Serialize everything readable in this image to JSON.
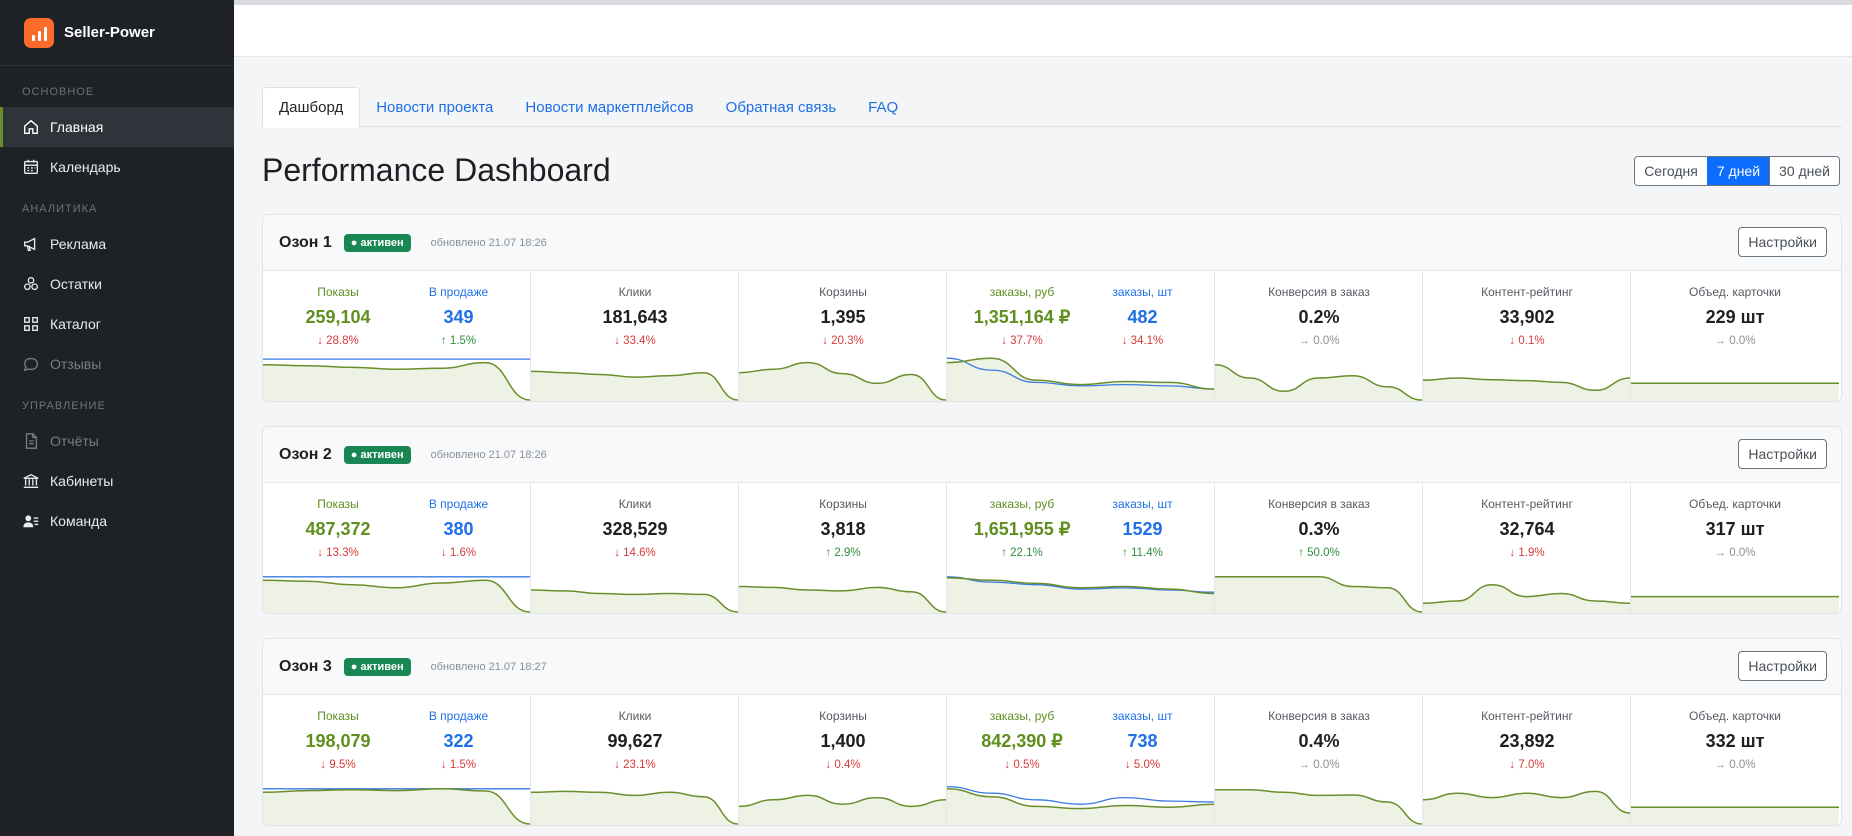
{
  "app": {
    "brand": "Seller-Power"
  },
  "sidebar": {
    "sections": [
      {
        "title": "ОСНОВНОЕ",
        "items": [
          {
            "label": "Главная",
            "icon": "home-icon",
            "active": true,
            "disabled": false
          },
          {
            "label": "Календарь",
            "icon": "calendar-icon",
            "active": false,
            "disabled": false
          }
        ]
      },
      {
        "title": "АНАЛИТИКА",
        "items": [
          {
            "label": "Реклама",
            "icon": "megaphone-icon",
            "active": false,
            "disabled": false
          },
          {
            "label": "Остатки",
            "icon": "boxes-icon",
            "active": false,
            "disabled": false
          },
          {
            "label": "Каталог",
            "icon": "grid-icon",
            "active": false,
            "disabled": false
          },
          {
            "label": "Отзывы",
            "icon": "chat-icon",
            "active": false,
            "disabled": true
          }
        ]
      },
      {
        "title": "УПРАВЛЕНИЕ",
        "items": [
          {
            "label": "Отчёты",
            "icon": "document-icon",
            "active": false,
            "disabled": true
          },
          {
            "label": "Кабинеты",
            "icon": "bank-icon",
            "active": false,
            "disabled": false
          },
          {
            "label": "Команда",
            "icon": "team-icon",
            "active": false,
            "disabled": false
          }
        ]
      }
    ]
  },
  "tabs": [
    {
      "label": "Дашборд",
      "active": true
    },
    {
      "label": "Новости проекта",
      "active": false
    },
    {
      "label": "Новости маркетплейсов",
      "active": false
    },
    {
      "label": "Обратная связь",
      "active": false
    },
    {
      "label": "FAQ",
      "active": false
    }
  ],
  "page_title": "Performance Dashboard",
  "period": [
    {
      "label": "Сегодня",
      "active": false
    },
    {
      "label": "7 дней",
      "active": true
    },
    {
      "label": "30 дней",
      "active": false
    }
  ],
  "settings_label": "Настройки",
  "colors": {
    "green": "#6a8e2d",
    "blue": "#3a7be0",
    "fill": "#eef2e4"
  },
  "cards": [
    {
      "name": "Озон 1",
      "status": "● активен",
      "updated": "обновлено 21.07 18:26",
      "cells": [
        {
          "type": "dual",
          "left": {
            "label": "Показы",
            "value": "259,104",
            "delta": "↓ 28.8%",
            "trend": "down"
          },
          "right": {
            "label": "В продаже",
            "value": "349",
            "delta": "↑ 1.5%",
            "trend": "up"
          },
          "series_green": [
            0.8,
            0.78,
            0.74,
            0.7,
            0.72,
            0.85,
            0.0
          ],
          "series_blue": [
            0.93,
            0.93,
            0.93,
            0.93,
            0.93,
            0.93,
            0.93
          ]
        },
        {
          "type": "single",
          "metric": {
            "label": "Клики",
            "value": "181,643",
            "delta": "↓ 33.4%",
            "trend": "down"
          },
          "series_green": [
            0.65,
            0.62,
            0.58,
            0.52,
            0.55,
            0.62,
            0.0
          ]
        },
        {
          "type": "single",
          "metric": {
            "label": "Корзины",
            "value": "1,395",
            "delta": "↓ 20.3%",
            "trend": "down"
          },
          "series_green": [
            0.62,
            0.7,
            0.85,
            0.6,
            0.38,
            0.58,
            0.0
          ]
        },
        {
          "type": "dual",
          "left": {
            "label": "заказы, руб",
            "value": "1,351,164 ₽",
            "delta": "↓ 37.7%",
            "trend": "down"
          },
          "right": {
            "label": "заказы, шт",
            "value": "482",
            "delta": "↓ 34.1%",
            "trend": "down"
          },
          "series_green": [
            0.85,
            0.95,
            0.45,
            0.35,
            0.42,
            0.4,
            0.25
          ],
          "series_blue": [
            0.95,
            0.68,
            0.4,
            0.32,
            0.35,
            0.32,
            0.25
          ]
        },
        {
          "type": "single",
          "metric": {
            "label": "Конверсия в заказ",
            "value": "0.2%",
            "delta": "→ 0.0%",
            "trend": "flat"
          },
          "series_green": [
            0.8,
            0.5,
            0.2,
            0.5,
            0.55,
            0.3,
            0.0
          ]
        },
        {
          "type": "single",
          "metric": {
            "label": "Контент-рейтинг",
            "value": "33,902",
            "delta": "↓ 0.1%",
            "trend": "down"
          },
          "series_green": [
            0.45,
            0.5,
            0.46,
            0.44,
            0.4,
            0.22,
            0.5
          ]
        },
        {
          "type": "single",
          "metric": {
            "label": "Объед. карточки",
            "value": "229 шт",
            "delta": "→ 0.0%",
            "trend": "flat"
          },
          "series_green": [
            0.38,
            0.38,
            0.38,
            0.38,
            0.38,
            0.38,
            0.38
          ]
        }
      ]
    },
    {
      "name": "Озон 2",
      "status": "● активен",
      "updated": "обновлено 21.07 18:26",
      "cells": [
        {
          "type": "dual",
          "left": {
            "label": "Показы",
            "value": "487,372",
            "delta": "↓ 13.3%",
            "trend": "down"
          },
          "right": {
            "label": "В продаже",
            "value": "380",
            "delta": "↓ 1.6%",
            "trend": "down"
          },
          "series_green": [
            0.72,
            0.7,
            0.62,
            0.55,
            0.66,
            0.72,
            0.0
          ],
          "series_blue": [
            0.8,
            0.8,
            0.8,
            0.8,
            0.8,
            0.8,
            0.8
          ]
        },
        {
          "type": "single",
          "metric": {
            "label": "Клики",
            "value": "328,529",
            "delta": "↓ 14.6%",
            "trend": "down"
          },
          "series_green": [
            0.5,
            0.48,
            0.42,
            0.4,
            0.42,
            0.4,
            0.0
          ]
        },
        {
          "type": "single",
          "metric": {
            "label": "Корзины",
            "value": "3,818",
            "delta": "↑ 2.9%",
            "trend": "up"
          },
          "series_green": [
            0.58,
            0.56,
            0.5,
            0.48,
            0.56,
            0.46,
            0.0
          ]
        },
        {
          "type": "dual",
          "left": {
            "label": "заказы, руб",
            "value": "1,651,955 ₽",
            "delta": "↑ 22.1%",
            "trend": "up"
          },
          "right": {
            "label": "заказы, шт",
            "value": "1529",
            "delta": "↑ 11.4%",
            "trend": "up"
          },
          "series_green": [
            0.78,
            0.72,
            0.65,
            0.55,
            0.58,
            0.52,
            0.42
          ],
          "series_blue": [
            0.8,
            0.68,
            0.62,
            0.52,
            0.55,
            0.5,
            0.45
          ]
        },
        {
          "type": "single",
          "metric": {
            "label": "Конверсия в заказ",
            "value": "0.3%",
            "delta": "↑ 50.0%",
            "trend": "up"
          },
          "series_green": [
            0.8,
            0.8,
            0.8,
            0.8,
            0.58,
            0.55,
            0.0
          ]
        },
        {
          "type": "single",
          "metric": {
            "label": "Контент-рейтинг",
            "value": "32,764",
            "delta": "↓ 1.9%",
            "trend": "down"
          },
          "series_green": [
            0.2,
            0.25,
            0.62,
            0.35,
            0.42,
            0.25,
            0.2
          ]
        },
        {
          "type": "single",
          "metric": {
            "label": "Объед. карточки",
            "value": "317 шт",
            "delta": "→ 0.0%",
            "trend": "flat"
          },
          "series_green": [
            0.35,
            0.35,
            0.35,
            0.35,
            0.35,
            0.35,
            0.35
          ]
        }
      ]
    },
    {
      "name": "Озон 3",
      "status": "● активен",
      "updated": "обновлено 21.07 18:27",
      "cells": [
        {
          "type": "dual",
          "left": {
            "label": "Показы",
            "value": "198,079",
            "delta": "↓ 9.5%",
            "trend": "down"
          },
          "right": {
            "label": "В продаже",
            "value": "322",
            "delta": "↓ 1.5%",
            "trend": "down"
          },
          "series_green": [
            0.72,
            0.76,
            0.78,
            0.76,
            0.8,
            0.75,
            0.0
          ],
          "series_blue": [
            0.8,
            0.8,
            0.8,
            0.8,
            0.8,
            0.8,
            0.8
          ]
        },
        {
          "type": "single",
          "metric": {
            "label": "Клики",
            "value": "99,627",
            "delta": "↓ 23.1%",
            "trend": "down"
          },
          "series_green": [
            0.72,
            0.74,
            0.72,
            0.65,
            0.72,
            0.62,
            0.0
          ]
        },
        {
          "type": "single",
          "metric": {
            "label": "Корзины",
            "value": "1,400",
            "delta": "↓ 0.4%",
            "trend": "down"
          },
          "series_green": [
            0.4,
            0.55,
            0.65,
            0.45,
            0.6,
            0.4,
            0.55
          ]
        },
        {
          "type": "dual",
          "left": {
            "label": "заказы, руб",
            "value": "842,390 ₽",
            "delta": "↓ 0.5%",
            "trend": "down"
          },
          "right": {
            "label": "заказы, шт",
            "value": "738",
            "delta": "↓ 5.0%",
            "trend": "down"
          },
          "series_green": [
            0.8,
            0.62,
            0.4,
            0.35,
            0.42,
            0.38,
            0.45
          ],
          "series_blue": [
            0.85,
            0.7,
            0.55,
            0.45,
            0.6,
            0.52,
            0.5
          ]
        },
        {
          "type": "single",
          "metric": {
            "label": "Конверсия в заказ",
            "value": "0.4%",
            "delta": "→ 0.0%",
            "trend": "flat"
          },
          "series_green": [
            0.78,
            0.78,
            0.72,
            0.65,
            0.66,
            0.5,
            0.0
          ]
        },
        {
          "type": "single",
          "metric": {
            "label": "Контент-рейтинг",
            "value": "23,892",
            "delta": "↓ 7.0%",
            "trend": "down"
          },
          "series_green": [
            0.55,
            0.7,
            0.6,
            0.7,
            0.6,
            0.74,
            0.25
          ]
        },
        {
          "type": "single",
          "metric": {
            "label": "Объед. карточки",
            "value": "332 шт",
            "delta": "→ 0.0%",
            "trend": "flat"
          },
          "series_green": [
            0.38,
            0.38,
            0.38,
            0.38,
            0.38,
            0.38,
            0.38
          ]
        }
      ]
    }
  ]
}
